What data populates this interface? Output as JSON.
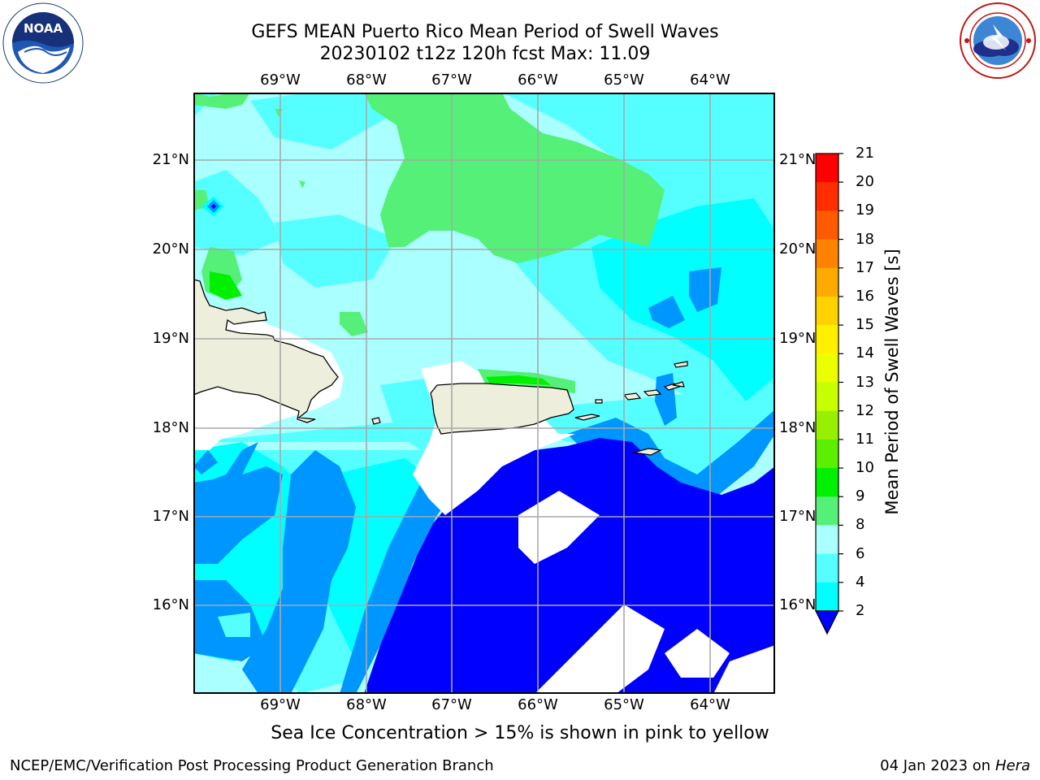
{
  "title_line1": "GEFS MEAN Puerto Rico Mean Period of Swell Waves",
  "title_line2": "20230102 t12z 120h fcst   Max: 11.09",
  "longitude_labels": [
    "69°W",
    "68°W",
    "67°W",
    "66°W",
    "65°W",
    "64°W"
  ],
  "latitude_labels": [
    "21°N",
    "20°N",
    "19°N",
    "18°N",
    "17°N",
    "16°N"
  ],
  "colorbar": {
    "label": "Mean Period of Swell Waves [s]",
    "ticks": [
      "21",
      "20",
      "19",
      "18",
      "17",
      "16",
      "15",
      "14",
      "13",
      "12",
      "11",
      "10",
      "9",
      "8",
      "6",
      "4",
      "2"
    ],
    "colors": [
      "#ff0000",
      "#ff2d00",
      "#ff5a00",
      "#ff8200",
      "#ffaa00",
      "#ffd200",
      "#fff000",
      "#ebff00",
      "#c8ff00",
      "#96f000",
      "#5af000",
      "#00f000",
      "#55f078",
      "#aaffff",
      "#55ffff",
      "#00ffff",
      "#0096ff",
      "#0000ff"
    ]
  },
  "chart_data": {
    "type": "heatmap",
    "title": "GEFS MEAN Puerto Rico Mean Period of Swell Waves",
    "subtitle": "20230102 t12z 120h fcst   Max: 11.09",
    "variable": "Mean Period of Swell Waves [s]",
    "max_value": 11.09,
    "lon_range": [
      "70°W",
      "63.3°W"
    ],
    "lat_range": [
      "15°N",
      "21.7°N"
    ],
    "color_levels": [
      2,
      4,
      6,
      8,
      9,
      10,
      11,
      12,
      13,
      14,
      15,
      16,
      17,
      18,
      19,
      20,
      21
    ],
    "grid": true
  },
  "ice_note": "Sea Ice Concentration > 15% is shown in pink to yellow",
  "footer_left": "NCEP/EMC/Verification Post Processing Product Generation Branch",
  "footer_right_prefix": "04 Jan 2023 on ",
  "footer_right_machine": "Hera",
  "logos": {
    "left": "noaa-logo",
    "right": "nws-logo"
  }
}
